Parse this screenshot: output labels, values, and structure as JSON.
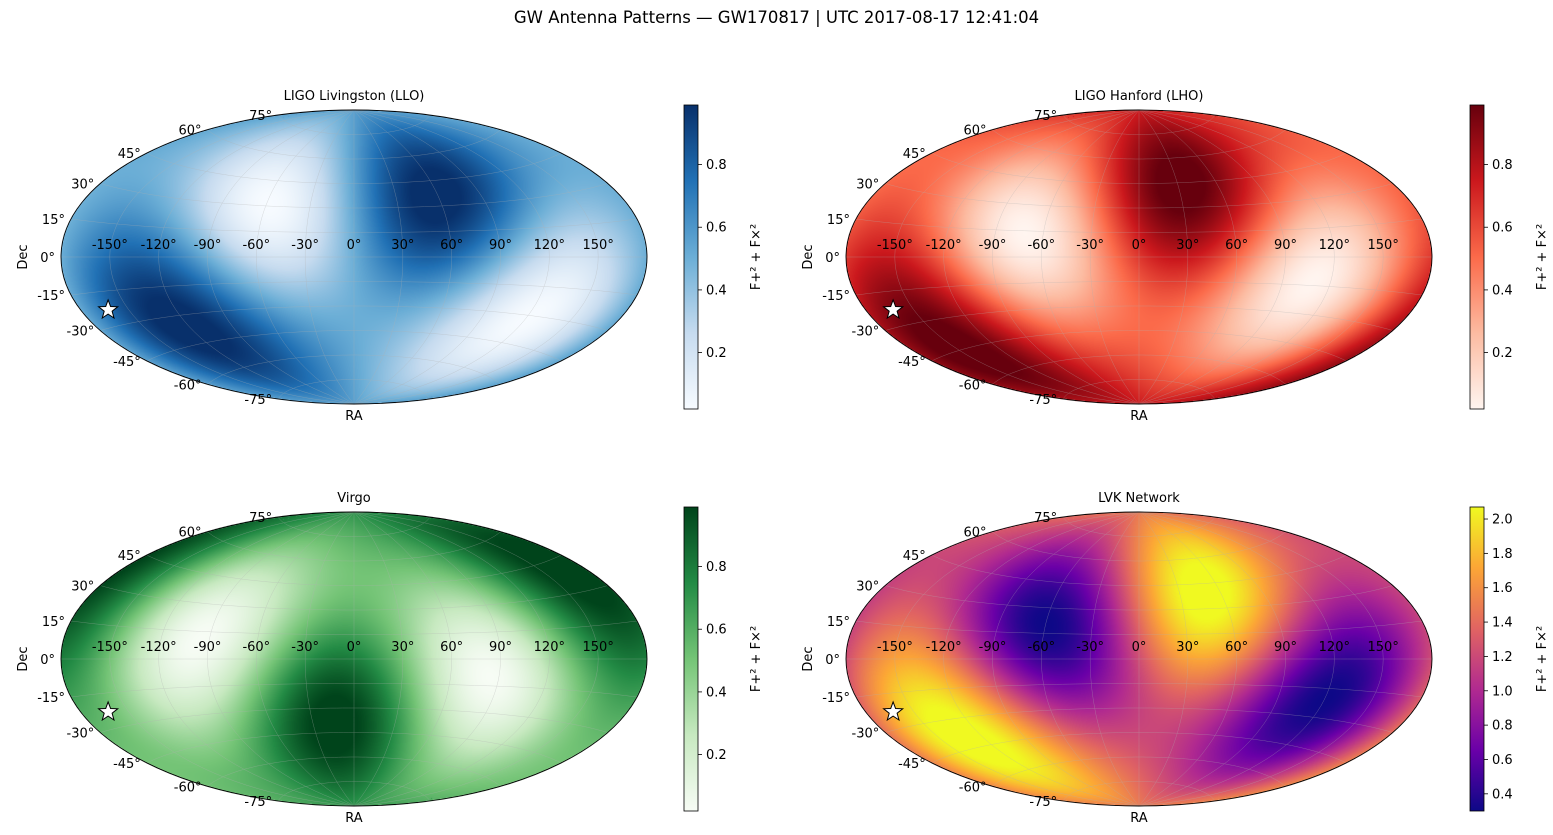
{
  "figure": {
    "suptitle": "GW Antenna Patterns — GW170817  |  UTC 2017-08-17 12:41:04"
  },
  "chart_data": [
    {
      "type": "heatmap",
      "projection": "aitoff",
      "title": "LIGO Livingston (LLO)",
      "xlabel": "RA",
      "ylabel": "Dec",
      "colorbar_label": "F+² + F×²",
      "colormap": "Blues",
      "colors": [
        "#f7fbff",
        "#c6dbef",
        "#6baed6",
        "#2171b5",
        "#08306b"
      ],
      "vmin": 0.02,
      "vmax": 0.99,
      "colorbar_ticks": [
        "0.2",
        "0.4",
        "0.6",
        "0.8"
      ],
      "colorbar_tick_values": [
        0.2,
        0.4,
        0.6,
        0.8
      ],
      "x_ticks": [
        "-150°",
        "-120°",
        "-90°",
        "-60°",
        "-30°",
        "0°",
        "30°",
        "60°",
        "90°",
        "120°",
        "150°"
      ],
      "y_ticks": [
        "75°",
        "60°",
        "45°",
        "30°",
        "15°",
        "0°",
        "-15°",
        "-30°",
        "-45°",
        "-60°",
        "-75°"
      ],
      "maxima": [
        {
          "ra": 60,
          "dec": 35,
          "value": 0.99
        },
        {
          "ra": -120,
          "dec": -35,
          "value": 0.99
        }
      ],
      "minima": [
        {
          "ra": -60,
          "dec": 30,
          "value": 0.02
        },
        {
          "ra": 120,
          "dec": -30,
          "value": 0.02
        }
      ],
      "source": {
        "name": "GW170817",
        "ra": -163,
        "dec": -23
      }
    },
    {
      "type": "heatmap",
      "projection": "aitoff",
      "title": "LIGO Hanford (LHO)",
      "xlabel": "RA",
      "ylabel": "Dec",
      "colorbar_label": "F+² + F×²",
      "colormap": "Reds",
      "colors": [
        "#fff5f0",
        "#fcbba1",
        "#fb6a4a",
        "#cb181d",
        "#67000d"
      ],
      "vmin": 0.02,
      "vmax": 0.99,
      "colorbar_ticks": [
        "0.2",
        "0.4",
        "0.6",
        "0.8"
      ],
      "colorbar_tick_values": [
        0.2,
        0.4,
        0.6,
        0.8
      ],
      "x_ticks": [
        "-150°",
        "-120°",
        "-90°",
        "-60°",
        "-30°",
        "0°",
        "30°",
        "60°",
        "90°",
        "120°",
        "150°"
      ],
      "y_ticks": [
        "75°",
        "60°",
        "45°",
        "30°",
        "15°",
        "0°",
        "-15°",
        "-30°",
        "-45°",
        "-60°",
        "-75°"
      ],
      "maxima": [
        {
          "ra": 30,
          "dec": 45,
          "value": 0.99
        },
        {
          "ra": -150,
          "dec": -45,
          "value": 0.99
        }
      ],
      "minima": [
        {
          "ra": -70,
          "dec": 15,
          "value": 0.02
        },
        {
          "ra": 110,
          "dec": -15,
          "value": 0.02
        }
      ],
      "source": {
        "name": "GW170817",
        "ra": -163,
        "dec": -23
      }
    },
    {
      "type": "heatmap",
      "projection": "aitoff",
      "title": "Virgo",
      "xlabel": "RA",
      "ylabel": "Dec",
      "colorbar_label": "F+² + F×²",
      "colormap": "Greens",
      "colors": [
        "#f7fcf5",
        "#c7e9c0",
        "#74c476",
        "#238b45",
        "#00441b"
      ],
      "vmin": 0.02,
      "vmax": 0.99,
      "colorbar_ticks": [
        "0.2",
        "0.4",
        "0.6",
        "0.8"
      ],
      "colorbar_tick_values": [
        0.2,
        0.4,
        0.6,
        0.8
      ],
      "x_ticks": [
        "-150°",
        "-120°",
        "-90°",
        "-60°",
        "-30°",
        "0°",
        "30°",
        "60°",
        "90°",
        "120°",
        "150°"
      ],
      "y_ticks": [
        "75°",
        "60°",
        "45°",
        "30°",
        "15°",
        "0°",
        "-15°",
        "-30°",
        "-45°",
        "-60°",
        "-75°"
      ],
      "maxima": [
        {
          "ra": -15,
          "dec": -40,
          "value": 0.99
        },
        {
          "ra": 165,
          "dec": 40,
          "value": 0.99
        }
      ],
      "minima": [
        {
          "ra": -95,
          "dec": 10,
          "value": 0.02
        },
        {
          "ra": 85,
          "dec": -10,
          "value": 0.02
        }
      ],
      "source": {
        "name": "GW170817",
        "ra": -163,
        "dec": -23
      }
    },
    {
      "type": "heatmap",
      "projection": "aitoff",
      "title": "LVK Network",
      "xlabel": "RA",
      "ylabel": "Dec",
      "colorbar_label": "F+² + F×²",
      "colormap": "plasma",
      "colors": [
        "#0d0887",
        "#6a00a8",
        "#b12a90",
        "#e16462",
        "#fca636",
        "#f0f921"
      ],
      "vmin": 0.3,
      "vmax": 2.07,
      "colorbar_ticks": [
        "0.4",
        "0.6",
        "0.8",
        "1.0",
        "1.2",
        "1.4",
        "1.6",
        "1.8",
        "2.0"
      ],
      "colorbar_tick_values": [
        0.4,
        0.6,
        0.8,
        1.0,
        1.2,
        1.4,
        1.6,
        1.8,
        2.0
      ],
      "x_ticks": [
        "-150°",
        "-120°",
        "-90°",
        "-60°",
        "-30°",
        "0°",
        "30°",
        "60°",
        "90°",
        "120°",
        "150°"
      ],
      "y_ticks": [
        "75°",
        "60°",
        "45°",
        "30°",
        "15°",
        "0°",
        "-15°",
        "-30°",
        "-45°",
        "-60°",
        "-75°"
      ],
      "maxima": [
        {
          "ra": 50,
          "dec": 40,
          "value": 2.05
        },
        {
          "ra": -130,
          "dec": -40,
          "value": 2.05
        }
      ],
      "minima": [
        {
          "ra": -60,
          "dec": 20,
          "value": 0.3
        },
        {
          "ra": 120,
          "dec": -20,
          "value": 0.3
        }
      ],
      "source": {
        "name": "GW170817",
        "ra": -163,
        "dec": -23
      }
    }
  ]
}
